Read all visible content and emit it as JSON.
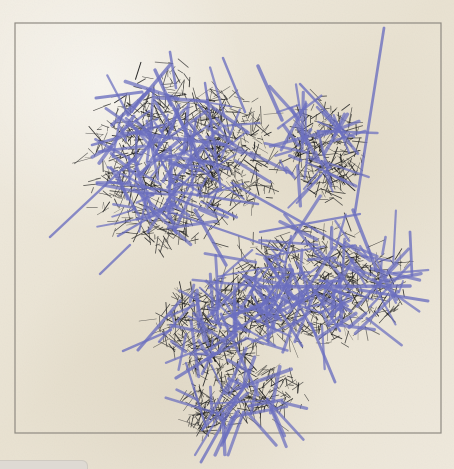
{
  "canvas": {
    "frame_color": "#8f8a82",
    "paper_colors": [
      "#f2ede2",
      "#e9e2d1",
      "#efe9dc"
    ],
    "dark_ink": "#1e1e1e",
    "blue_ink": "#6b6fc0"
  },
  "bottom_bar": {
    "present": true
  }
}
